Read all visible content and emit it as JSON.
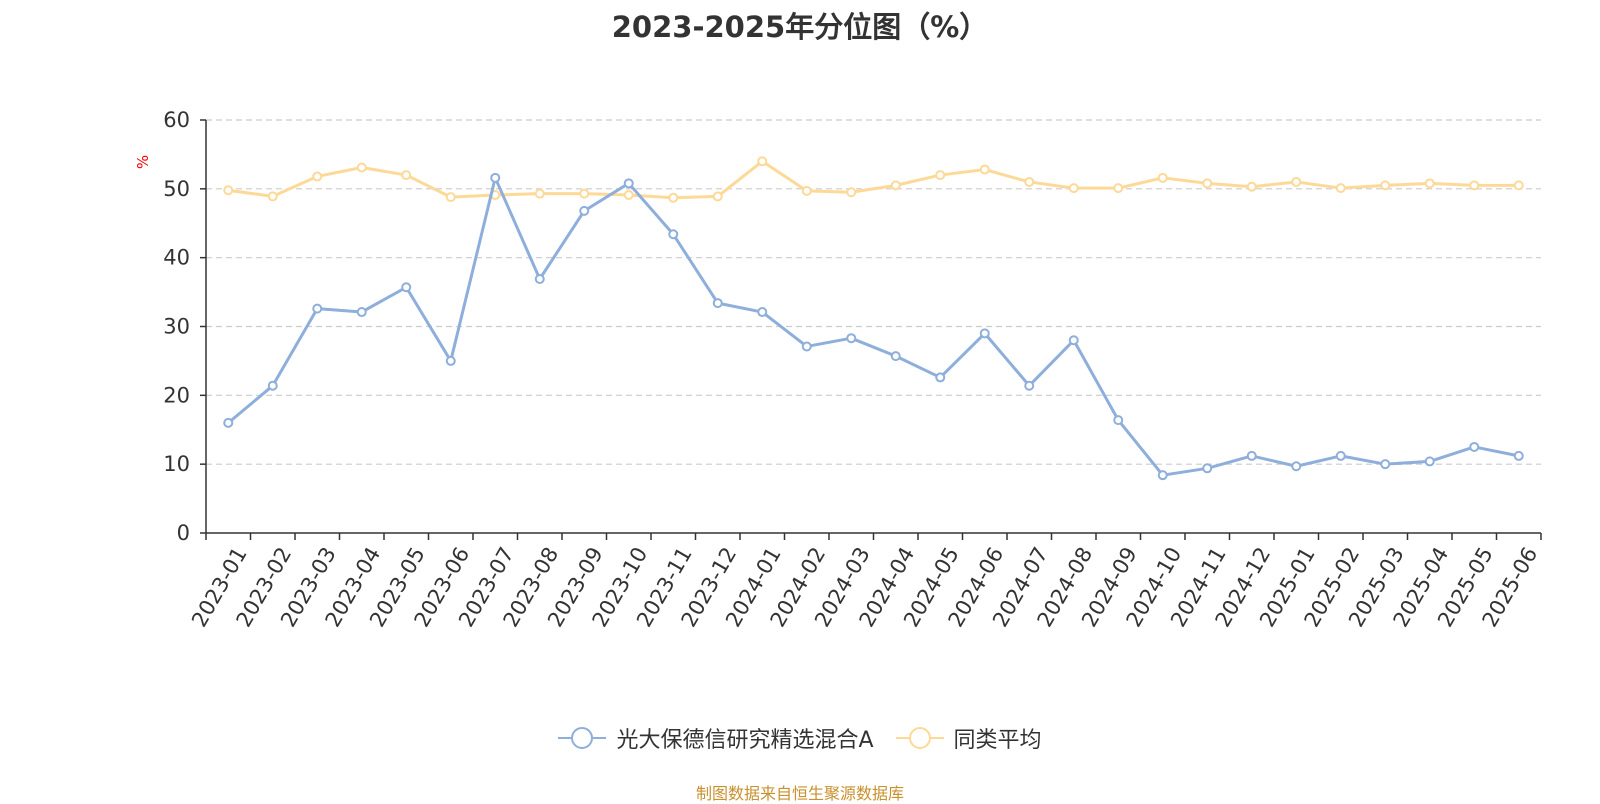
{
  "title": "2023-2025年分位图（%）",
  "source": "制图数据来自恒生聚源数据库",
  "colors": {
    "series1": "#8eaedb",
    "series2": "#fdd997",
    "source": "#c8912d",
    "yunit": "#ff0000",
    "axis": "#333333",
    "grid": "#cccccc"
  },
  "chart_data": {
    "type": "line",
    "ylabel": "%",
    "ylim": [
      0,
      60
    ],
    "yticks": [
      0,
      10,
      20,
      30,
      40,
      50,
      60
    ],
    "grid": "horizontal dashed",
    "legend_position": "bottom",
    "x": [
      "2023-01",
      "2023-02",
      "2023-03",
      "2023-04",
      "2023-05",
      "2023-06",
      "2023-07",
      "2023-08",
      "2023-09",
      "2023-10",
      "2023-11",
      "2023-12",
      "2024-01",
      "2024-02",
      "2024-03",
      "2024-04",
      "2024-05",
      "2024-06",
      "2024-07",
      "2024-08",
      "2024-09",
      "2024-10",
      "2024-11",
      "2024-12",
      "2025-01",
      "2025-02",
      "2025-03",
      "2025-04",
      "2025-05",
      "2025-06"
    ],
    "series": [
      {
        "name": "光大保德信研究精选混合A",
        "values": [
          16.0,
          21.4,
          32.6,
          32.1,
          35.7,
          25.0,
          51.6,
          36.9,
          46.8,
          50.8,
          43.4,
          33.4,
          32.1,
          27.1,
          28.3,
          25.7,
          22.6,
          29.0,
          21.4,
          28.0,
          16.4,
          8.4,
          9.4,
          11.2,
          9.7,
          11.2,
          10.0,
          10.4,
          12.5,
          11.2
        ]
      },
      {
        "name": "同类平均",
        "values": [
          49.8,
          48.9,
          51.8,
          53.1,
          52.0,
          48.8,
          49.1,
          49.3,
          49.3,
          49.1,
          48.7,
          48.9,
          54.0,
          49.7,
          49.5,
          50.5,
          52.0,
          52.8,
          51.0,
          50.1,
          50.1,
          51.6,
          50.8,
          50.3,
          51.0,
          50.1,
          50.5,
          50.8,
          50.5,
          50.5
        ]
      }
    ]
  }
}
